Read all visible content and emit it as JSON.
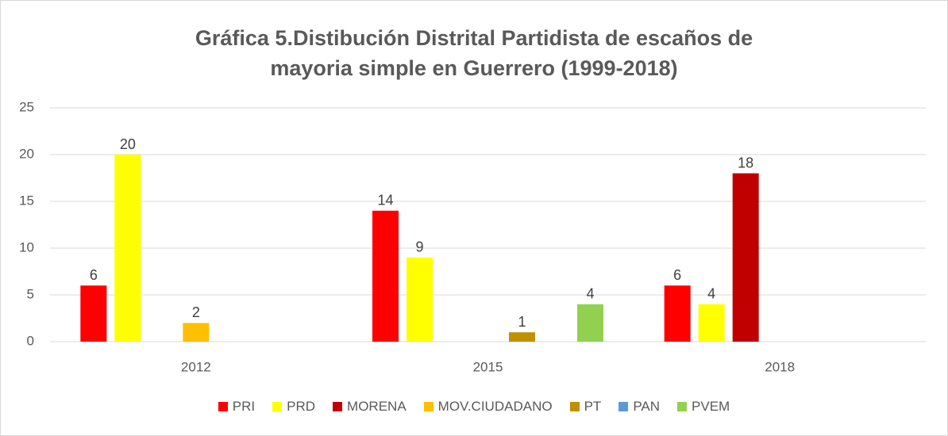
{
  "chart_data": {
    "type": "bar",
    "title": "Gráfica 5.Distibución Distrital Partidista de escaños de mayoria simple en Guerrero (1999-2018)",
    "categories": [
      "2012",
      "2015",
      "2018"
    ],
    "series": [
      {
        "name": "PRI",
        "color": "#ff0000",
        "values": [
          6,
          14,
          6
        ]
      },
      {
        "name": "PRD",
        "color": "#ffff00",
        "values": [
          20,
          9,
          4
        ]
      },
      {
        "name": "MORENA",
        "color": "#c00000",
        "values": [
          null,
          null,
          18
        ]
      },
      {
        "name": "MOV.CIUDADANO",
        "color": "#ffc000",
        "values": [
          2,
          null,
          null
        ]
      },
      {
        "name": "PT",
        "color": "#bf9000",
        "values": [
          null,
          1,
          null
        ]
      },
      {
        "name": "PAN",
        "color": "#5b9bd5",
        "values": [
          null,
          null,
          null
        ]
      },
      {
        "name": "PVEM",
        "color": "#92d050",
        "values": [
          null,
          4,
          null
        ]
      }
    ],
    "ylim": [
      0,
      25
    ],
    "yticks": [
      0,
      5,
      10,
      15,
      20,
      25
    ],
    "grid": true,
    "legend": "bottom"
  }
}
